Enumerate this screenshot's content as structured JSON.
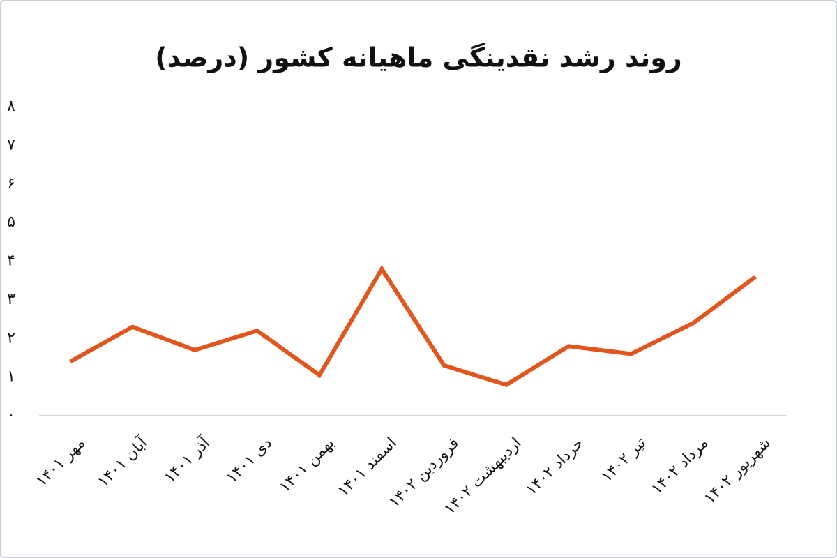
{
  "chart_data": {
    "type": "line",
    "title": "روند رشد نقدینگی ماهیانه کشور (درصد)",
    "categories": [
      "مهر ۱۴۰۱",
      "آبان ۱۴۰۱",
      "آذر ۱۴۰۱",
      "دی ۱۴۰۱",
      "بهمن ۱۴۰۱",
      "اسفند ۱۴۰۱",
      "فروردین ۱۴۰۲",
      "اردیبهشت ۱۴۰۲",
      "خرداد ۱۴۰۲",
      "تیر ۱۴۰۲",
      "مرداد ۱۴۰۲",
      "شهریور ۱۴۰۲"
    ],
    "values": [
      1.4,
      2.3,
      1.7,
      2.2,
      1.05,
      3.8,
      1.3,
      0.8,
      1.8,
      1.6,
      2.4,
      3.6
    ],
    "color": "#e2561d",
    "ylim": [
      0,
      8
    ],
    "yticks": [
      {
        "value": 0,
        "label": "۰"
      },
      {
        "value": 1,
        "label": "۱"
      },
      {
        "value": 2,
        "label": "۲"
      },
      {
        "value": 3,
        "label": "۳"
      },
      {
        "value": 4,
        "label": "۴"
      },
      {
        "value": 5,
        "label": "۵"
      },
      {
        "value": 6,
        "label": "۶"
      },
      {
        "value": 7,
        "label": "۷"
      },
      {
        "value": 8,
        "label": "۸"
      }
    ],
    "grid": false
  }
}
